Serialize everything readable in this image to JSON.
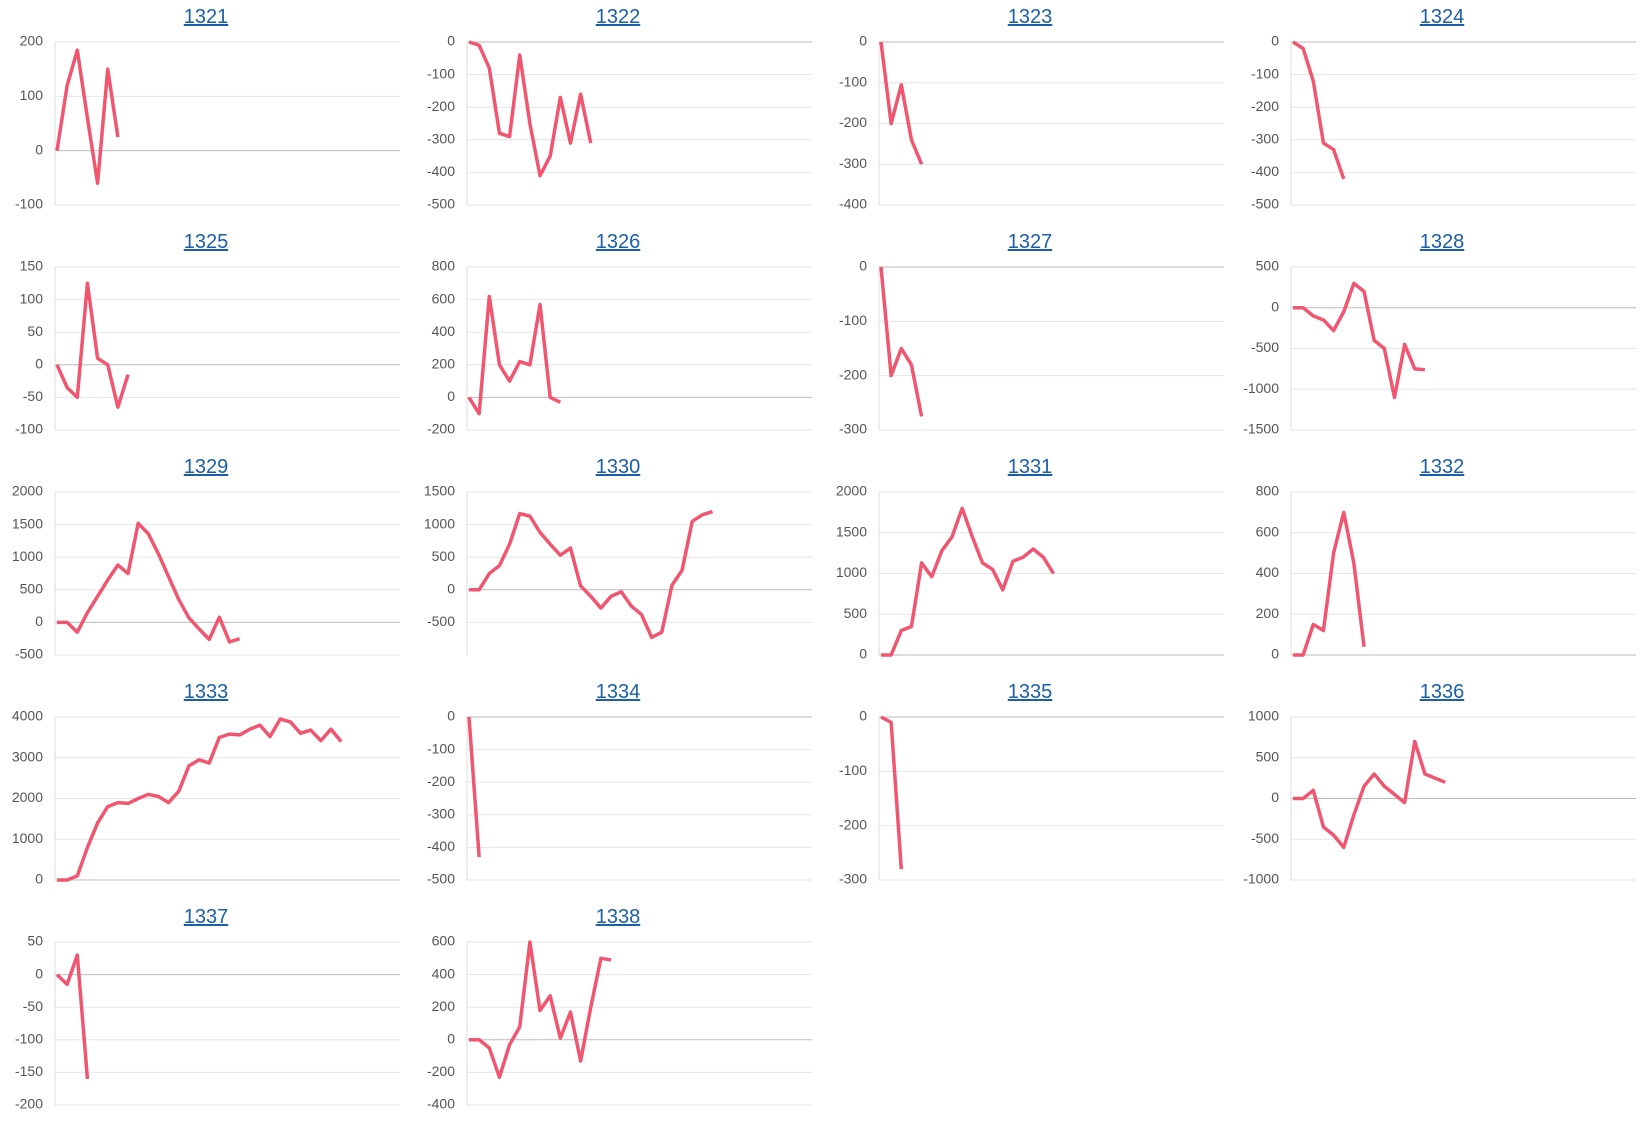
{
  "chart_data": [
    {
      "type": "line",
      "title": "1321",
      "color": "#f0566f",
      "ylim": [
        -100,
        200
      ],
      "yticks": [
        -100,
        0,
        100,
        200
      ],
      "grid": true,
      "values": [
        0,
        120,
        185,
        60,
        -60,
        150,
        25
      ]
    },
    {
      "type": "line",
      "title": "1322",
      "color": "#f0566f",
      "ylim": [
        -500,
        0
      ],
      "yticks": [
        -500,
        -400,
        -300,
        -200,
        -100,
        0
      ],
      "grid": true,
      "values": [
        0,
        -10,
        -80,
        -280,
        -290,
        -40,
        -250,
        -410,
        -350,
        -170,
        -310,
        -160,
        -310
      ]
    },
    {
      "type": "line",
      "title": "1323",
      "color": "#f0566f",
      "ylim": [
        -400,
        0
      ],
      "yticks": [
        -400,
        -300,
        -200,
        -100,
        0
      ],
      "grid": true,
      "values": [
        0,
        -200,
        -105,
        -240,
        -300
      ]
    },
    {
      "type": "line",
      "title": "1324",
      "color": "#f0566f",
      "ylim": [
        -500,
        0
      ],
      "yticks": [
        -500,
        -400,
        -300,
        -200,
        -100,
        0
      ],
      "grid": true,
      "values": [
        0,
        -20,
        -120,
        -310,
        -330,
        -420
      ]
    },
    {
      "type": "line",
      "title": "1325",
      "color": "#f0566f",
      "ylim": [
        -100,
        150
      ],
      "yticks": [
        -100,
        -50,
        0,
        50,
        100,
        150
      ],
      "grid": true,
      "values": [
        0,
        -35,
        -50,
        125,
        10,
        0,
        -65,
        -15
      ]
    },
    {
      "type": "line",
      "title": "1326",
      "color": "#f0566f",
      "ylim": [
        -200,
        800
      ],
      "yticks": [
        -200,
        0,
        200,
        400,
        600,
        800
      ],
      "grid": true,
      "values": [
        0,
        -100,
        620,
        200,
        100,
        220,
        200,
        570,
        0,
        -30
      ]
    },
    {
      "type": "line",
      "title": "1327",
      "color": "#f0566f",
      "ylim": [
        -300,
        0
      ],
      "yticks": [
        -300,
        -200,
        -100,
        0
      ],
      "grid": true,
      "values": [
        0,
        -200,
        -150,
        -180,
        -275
      ]
    },
    {
      "type": "line",
      "title": "1328",
      "color": "#f0566f",
      "ylim": [
        -1500,
        500
      ],
      "yticks": [
        -1500,
        -1000,
        -500,
        0,
        500
      ],
      "grid": true,
      "values": [
        0,
        0,
        -100,
        -150,
        -280,
        -50,
        300,
        200,
        -400,
        -500,
        -1100,
        -450,
        -750,
        -760
      ]
    },
    {
      "type": "line",
      "title": "1329",
      "color": "#f0566f",
      "ylim": [
        -500,
        2000
      ],
      "yticks": [
        -500,
        0,
        500,
        1000,
        1500,
        2000
      ],
      "grid": true,
      "values": [
        0,
        0,
        -150,
        150,
        400,
        650,
        880,
        750,
        1520,
        1360,
        1050,
        700,
        350,
        70,
        -100,
        -260,
        80,
        -300,
        -250
      ]
    },
    {
      "type": "line",
      "title": "1330",
      "color": "#f0566f",
      "ylim": [
        -1000,
        1500
      ],
      "yticks": [
        -500,
        0,
        500,
        1000,
        1500
      ],
      "grid": true,
      "values": [
        0,
        0,
        250,
        370,
        700,
        1170,
        1130,
        880,
        700,
        530,
        640,
        60,
        -100,
        -280,
        -100,
        -30,
        -250,
        -380,
        -730,
        -650,
        70,
        300,
        1050,
        1150,
        1200
      ]
    },
    {
      "type": "line",
      "title": "1331",
      "color": "#f0566f",
      "ylim": [
        0,
        2000
      ],
      "yticks": [
        0,
        500,
        1000,
        1500,
        2000
      ],
      "grid": true,
      "values": [
        0,
        0,
        300,
        350,
        1130,
        960,
        1280,
        1450,
        1800,
        1450,
        1130,
        1050,
        800,
        1150,
        1200,
        1300,
        1200,
        1000
      ]
    },
    {
      "type": "line",
      "title": "1332",
      "color": "#f0566f",
      "ylim": [
        0,
        800
      ],
      "yticks": [
        0,
        200,
        400,
        600,
        800
      ],
      "grid": true,
      "values": [
        0,
        0,
        150,
        120,
        500,
        700,
        450,
        40
      ]
    },
    {
      "type": "line",
      "title": "1333",
      "color": "#f0566f",
      "ylim": [
        0,
        4000
      ],
      "yticks": [
        0,
        1000,
        2000,
        3000,
        4000
      ],
      "grid": true,
      "values": [
        0,
        0,
        100,
        800,
        1400,
        1800,
        1900,
        1880,
        2000,
        2100,
        2050,
        1900,
        2180,
        2800,
        2950,
        2870,
        3500,
        3580,
        3560,
        3700,
        3800,
        3520,
        3950,
        3880,
        3600,
        3680,
        3420,
        3700,
        3400
      ]
    },
    {
      "type": "line",
      "title": "1334",
      "color": "#f0566f",
      "ylim": [
        -500,
        0
      ],
      "yticks": [
        -500,
        -400,
        -300,
        -200,
        -100,
        0
      ],
      "grid": true,
      "values": [
        0,
        -430
      ]
    },
    {
      "type": "line",
      "title": "1335",
      "color": "#f0566f",
      "ylim": [
        -300,
        0
      ],
      "yticks": [
        -300,
        -200,
        -100,
        0
      ],
      "grid": true,
      "values": [
        0,
        -10,
        -280
      ]
    },
    {
      "type": "line",
      "title": "1336",
      "color": "#f0566f",
      "ylim": [
        -1000,
        1000
      ],
      "yticks": [
        -1000,
        -500,
        0,
        500,
        1000
      ],
      "grid": true,
      "values": [
        0,
        0,
        100,
        -350,
        -450,
        -600,
        -200,
        150,
        300,
        150,
        50,
        -50,
        700,
        300,
        250,
        200
      ]
    },
    {
      "type": "line",
      "title": "1337",
      "color": "#f0566f",
      "ylim": [
        -200,
        50
      ],
      "yticks": [
        -200,
        -150,
        -100,
        -50,
        0,
        50
      ],
      "grid": true,
      "values": [
        0,
        -15,
        30,
        -160
      ]
    },
    {
      "type": "line",
      "title": "1338",
      "color": "#f0566f",
      "ylim": [
        -400,
        600
      ],
      "yticks": [
        -400,
        -200,
        0,
        200,
        400,
        600
      ],
      "grid": true,
      "values": [
        0,
        0,
        -50,
        -230,
        -30,
        80,
        600,
        180,
        270,
        10,
        170,
        -130,
        200,
        500,
        490
      ]
    }
  ]
}
